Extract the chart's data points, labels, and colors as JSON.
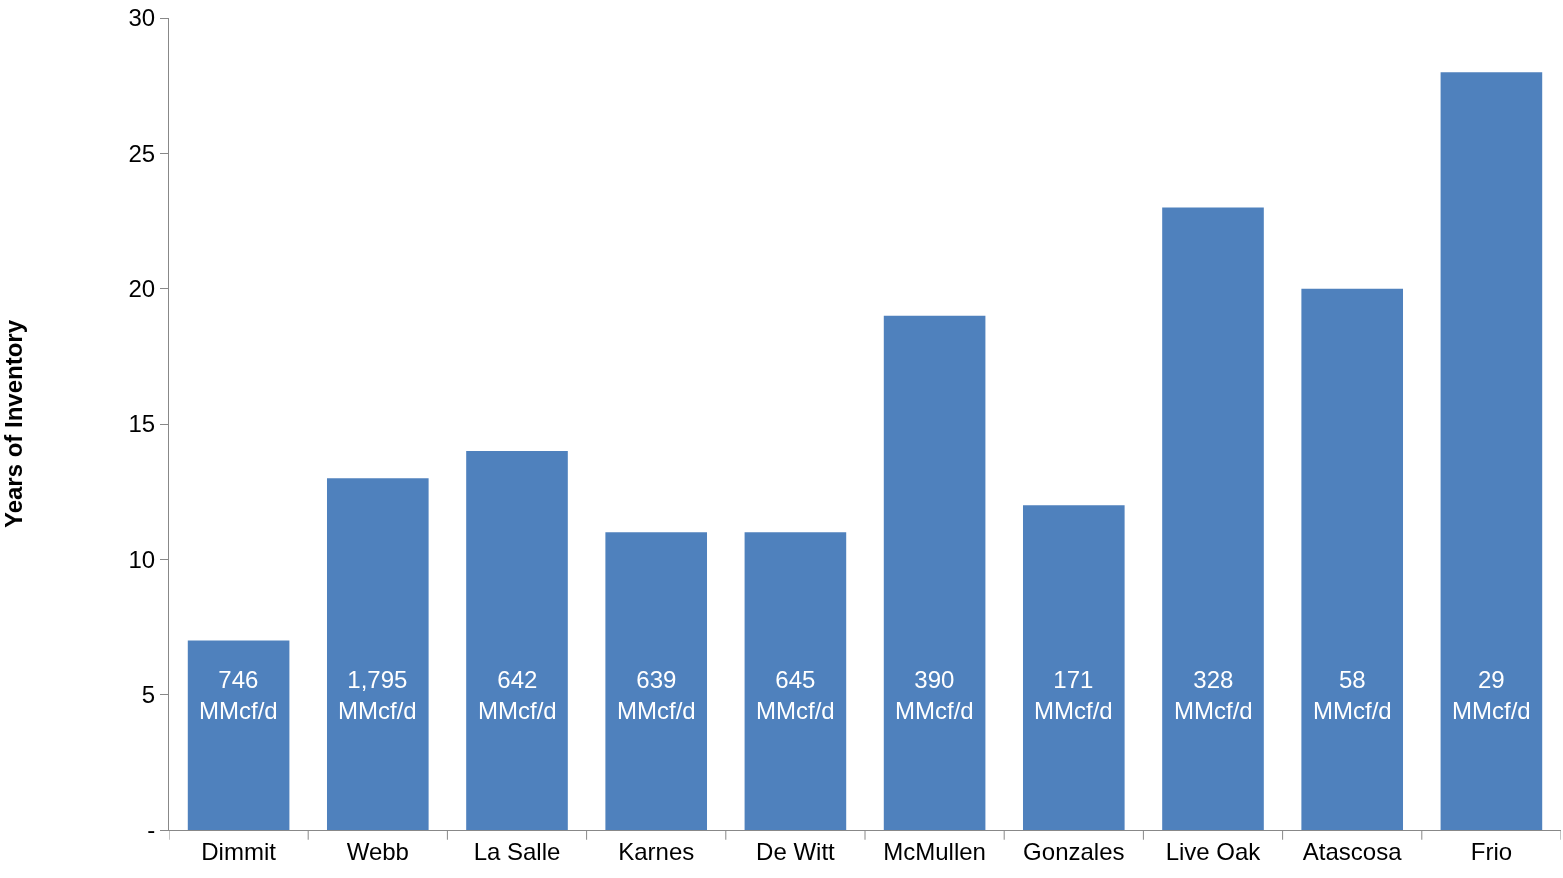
{
  "chart_data": {
    "type": "bar",
    "ylabel": "Years of Inventory",
    "categories": [
      "Dimmit",
      "Webb",
      "La Salle",
      "Karnes",
      "De Witt",
      "McMullen",
      "Gonzales",
      "Live Oak",
      "Atascosa",
      "Frio"
    ],
    "values": [
      7,
      13,
      14,
      11,
      11,
      19,
      12,
      23,
      20,
      28
    ],
    "annotations": [
      "746 MMcf/d",
      "1,795 MMcf/d",
      "642 MMcf/d",
      "639 MMcf/d",
      "645 MMcf/d",
      "390 MMcf/d",
      "171 MMcf/d",
      "328 MMcf/d",
      "58 MMcf/d",
      "29 MMcf/d"
    ],
    "color": "#4f81bd",
    "ylim": [
      0,
      30
    ],
    "yticks": [
      {
        "value": 0,
        "label": "-"
      },
      5,
      10,
      15,
      20,
      25,
      30
    ]
  }
}
